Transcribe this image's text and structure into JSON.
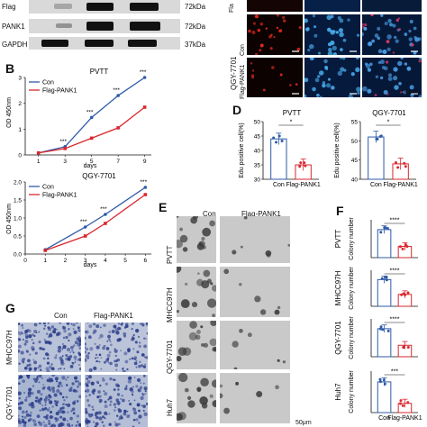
{
  "panel_A": {
    "blot_labels": [
      "Flag",
      "PANK1",
      "GAPDH"
    ],
    "mw_labels": [
      "72kDa",
      "72kDa",
      "37kDa"
    ],
    "micro_side_label": "Fla",
    "micro_row_labels": [
      "Con",
      "Flag-PANK1"
    ],
    "micro_group_label": "QGY-7701",
    "scale": "50μm"
  },
  "panel_B": {
    "letter": "B",
    "ylabel": "OD 450nm",
    "xlabel": "days",
    "charts": [
      {
        "title": "PVTT",
        "legend": [
          "Con",
          "Flag-PANK1"
        ],
        "x_ticks": [
          "1",
          "3",
          "5",
          "7",
          "9"
        ],
        "y_ticks": [
          "0",
          "1",
          "2",
          "3"
        ],
        "stars": [
          "***",
          "***",
          "***",
          "***"
        ]
      },
      {
        "title": "QGY-7701",
        "legend": [
          "Con",
          "Flag-PANK1"
        ],
        "x_ticks": [
          "0",
          "1",
          "2",
          "3",
          "4",
          "5",
          "6"
        ],
        "y_ticks": [
          "0.0",
          "0.5",
          "1.0",
          "1.5",
          "2.0"
        ],
        "stars": [
          "***",
          "***",
          "***"
        ]
      }
    ]
  },
  "chart_data": [
    {
      "type": "line",
      "title": "PVTT",
      "xlabel": "days",
      "ylabel": "OD 450nm",
      "x": [
        1,
        3,
        5,
        7,
        9
      ],
      "xlim": [
        0,
        9.5
      ],
      "ylim": [
        0,
        3
      ],
      "series": [
        {
          "name": "Con",
          "color": "#2e5aa8",
          "values": [
            0.08,
            0.32,
            1.45,
            2.3,
            3.0
          ]
        },
        {
          "name": "Flag-PANK1",
          "color": "#d9272e",
          "values": [
            0.08,
            0.25,
            0.65,
            1.05,
            1.85
          ]
        }
      ]
    },
    {
      "type": "line",
      "title": "QGY-7701",
      "xlabel": "days",
      "ylabel": "OD 450nm",
      "x": [
        1,
        3,
        4,
        6
      ],
      "xlim": [
        0,
        6.3
      ],
      "ylim": [
        0,
        2.0
      ],
      "series": [
        {
          "name": "Con",
          "color": "#2e5aa8",
          "values": [
            0.12,
            0.75,
            1.1,
            1.85
          ]
        },
        {
          "name": "Flag-PANK1",
          "color": "#d9272e",
          "values": [
            0.1,
            0.5,
            0.85,
            1.65
          ]
        }
      ]
    },
    {
      "type": "bar",
      "title": "PVTT",
      "ylabel": "Edu positive cell(%)",
      "categories": [
        "Con",
        "Flag-PANK1"
      ],
      "values": [
        44,
        35
      ],
      "ylim": [
        30,
        50
      ],
      "y_ticks": [
        "30",
        "35",
        "40",
        "45",
        "50"
      ],
      "significance": "*"
    },
    {
      "type": "bar",
      "title": "QGY-7701",
      "ylabel": "Edu positive cell(%)",
      "categories": [
        "Con",
        "Flag-PANK1"
      ],
      "values": [
        51,
        44
      ],
      "ylim": [
        40,
        55
      ],
      "y_ticks": [
        "40",
        "45",
        "50",
        "55"
      ],
      "significance": "*"
    },
    {
      "type": "bar",
      "title": "PVTT",
      "ylabel": "Colony number",
      "categories": [
        "Con",
        "Flag-PANK1"
      ],
      "values": [
        15,
        6
      ],
      "significance": "****"
    },
    {
      "type": "bar",
      "title": "MHCC97H",
      "ylabel": "Colony number",
      "categories": [
        "Con",
        "Flag-PANK1"
      ],
      "values": [
        18,
        8
      ],
      "significance": "****"
    },
    {
      "type": "bar",
      "title": "QGY-7701",
      "ylabel": "Colony number",
      "categories": [
        "Con",
        "Flag-PANK1"
      ],
      "values": [
        22,
        9
      ],
      "significance": "****"
    },
    {
      "type": "bar",
      "title": "Huh7",
      "ylabel": "Colony number",
      "categories": [
        "Con",
        "Flag-PANK1"
      ],
      "values": [
        20,
        6
      ],
      "significance": "***"
    }
  ],
  "panel_D": {
    "letter": "D",
    "ylabel": "Edu positive cell(%)",
    "xcats": [
      "Con",
      "Flag-PANK1"
    ]
  },
  "panel_E": {
    "letter": "E",
    "cols": [
      "Con",
      "Flag-PANK1"
    ],
    "rows": [
      "PVTT",
      "MHCC97H",
      "QGY-7701",
      "Huh7"
    ],
    "scale": "50μm"
  },
  "panel_F": {
    "letter": "F",
    "ylabel": "Colony number",
    "xcats": [
      "Con",
      "Flag-PANK1"
    ]
  },
  "panel_G": {
    "letter": "G",
    "cols": [
      "Con",
      "Flag-PANK1"
    ],
    "rows": [
      "MHCC97H",
      "QGY-7701"
    ]
  }
}
